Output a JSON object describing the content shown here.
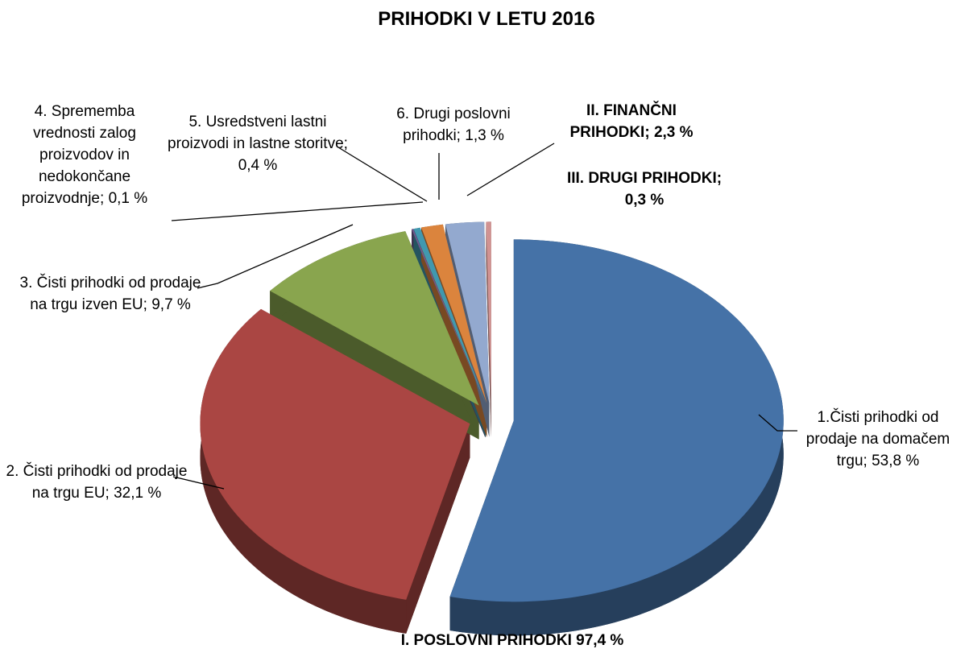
{
  "chart_data": {
    "type": "pie",
    "title": "PRIHODKI V LETU 2016",
    "annotation": "I. POSLOVNI PRIHODKI 97,4 %",
    "categories": [
      "1.Čisti prihodki od prodaje na domačem trgu;",
      "2. Čisti prihodki od prodaje na trgu EU;",
      "3. Čisti prihodki od prodaje na trgu izven EU;",
      "4. Sprememba vrednosti zalog proizvodov in nedokončane proizvodnje;",
      "5. Usredstveni lastni proizvodi in lastne storitve;",
      "6. Drugi poslovni prihodki;",
      "II. FINANČNI PRIHODKI;",
      "III. DRUGI PRIHODKI;"
    ],
    "values": [
      53.8,
      32.1,
      9.7,
      0.1,
      0.4,
      1.3,
      2.3,
      0.3
    ],
    "value_labels": [
      "53,8 %",
      "32,1 %",
      "9,7 %",
      "0,1 %",
      "0,4 %",
      "1,3 %",
      "2,3 %",
      "0,3 %"
    ],
    "colors": [
      "#4572a7",
      "#aa4643",
      "#89a54e",
      "#71588f",
      "#4198af",
      "#db843d",
      "#93a9cf",
      "#d19392"
    ]
  }
}
